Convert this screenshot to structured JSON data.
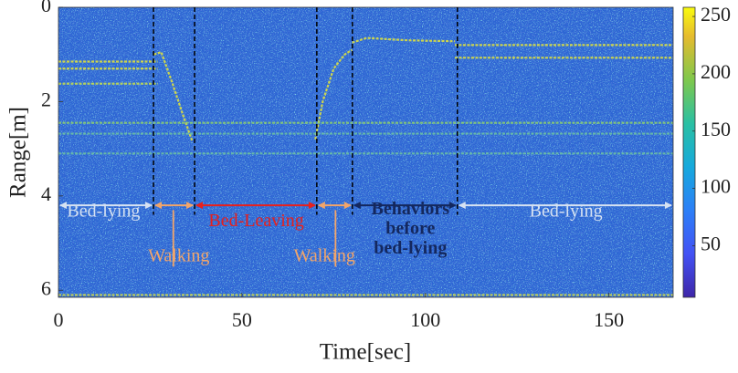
{
  "chart_data": {
    "type": "heatmap",
    "x_label": "Time[sec]",
    "y_label": "Range[m]",
    "xlim": [
      0,
      167.5
    ],
    "ylim": [
      0,
      6.15
    ],
    "y_reversed": true,
    "xticks": [
      0,
      50,
      100,
      150
    ],
    "yticks": [
      0,
      2,
      4,
      6
    ],
    "clim": [
      5,
      258
    ],
    "cticks": [
      50,
      100,
      150,
      200,
      250
    ],
    "background_color": "#2d66d4",
    "traces": [
      {
        "color": "#e6e636",
        "x": [
          0,
          27
        ],
        "y": [
          1.15,
          1.15
        ]
      },
      {
        "color": "#e6e636",
        "x": [
          0,
          27
        ],
        "y": [
          1.3,
          1.3
        ]
      },
      {
        "color": "#c8e24a",
        "x": [
          0,
          27
        ],
        "y": [
          1.62,
          1.62
        ]
      },
      {
        "color": "#e6e636",
        "x": [
          26,
          28,
          31,
          34,
          36.5
        ],
        "y": [
          1.0,
          0.95,
          1.6,
          2.3,
          2.85
        ]
      },
      {
        "color": "#e6e636",
        "x": [
          70,
          72,
          75,
          78,
          80
        ],
        "y": [
          2.8,
          2.0,
          1.3,
          1.0,
          0.9
        ]
      },
      {
        "color": "#e6e636",
        "x": [
          80,
          84,
          95,
          108
        ],
        "y": [
          0.75,
          0.65,
          0.7,
          0.72
        ]
      },
      {
        "color": "#e6e636",
        "x": [
          108,
          167.5
        ],
        "y": [
          0.8,
          0.8
        ]
      },
      {
        "color": "#e6e636",
        "x": [
          108,
          167.5
        ],
        "y": [
          1.07,
          1.07
        ]
      },
      {
        "color": "#8fd36a",
        "x": [
          0,
          167.5
        ],
        "y": [
          2.45,
          2.45
        ]
      },
      {
        "color": "#6fc4a0",
        "x": [
          0,
          167.5
        ],
        "y": [
          2.68,
          2.68
        ]
      },
      {
        "color": "#6fc4a0",
        "x": [
          0,
          167.5
        ],
        "y": [
          3.1,
          3.1
        ]
      },
      {
        "color": "#d8e040",
        "x": [
          0,
          167.5
        ],
        "y": [
          6.1,
          6.1
        ]
      }
    ],
    "event_lines": [
      25.9,
      37.1,
      70.4,
      80.1,
      108.7
    ],
    "event_line_ymax": 4.4,
    "spans": [
      {
        "x": [
          0,
          25.9
        ],
        "y": 4.2,
        "color": "#d6e2f2"
      },
      {
        "x": [
          25.9,
          37.1
        ],
        "y": 4.2,
        "color": "#f2a56a"
      },
      {
        "x": [
          37.1,
          70.4
        ],
        "y": 4.2,
        "color": "#e8201c"
      },
      {
        "x": [
          70.4,
          80.1
        ],
        "y": 4.2,
        "color": "#f2a56a"
      },
      {
        "x": [
          80.1,
          108.7
        ],
        "y": 4.2,
        "color": "#14285e"
      },
      {
        "x": [
          108.7,
          167.5
        ],
        "y": 4.2,
        "color": "#d6e2f2"
      }
    ],
    "leaders": [
      {
        "x": 31.3,
        "y": [
          4.3,
          5.5
        ],
        "color": "#f2a56a"
      },
      {
        "x": 75.5,
        "y": [
          4.3,
          5.5
        ],
        "color": "#f2a56a"
      }
    ],
    "annotations": [
      {
        "text": "Bed-lying",
        "x": 12.3,
        "y": 4.35,
        "color": "#d6e2f2",
        "bold": false
      },
      {
        "text": "Walking",
        "x": 32.8,
        "y": 5.3,
        "color": "#f2a56a",
        "bold": false
      },
      {
        "text": "Bed-Leaving",
        "x": 53.9,
        "y": 4.55,
        "color": "#e8201c",
        "bold": false
      },
      {
        "text": "Walking",
        "x": 72.5,
        "y": 5.3,
        "color": "#f2a56a",
        "bold": false
      },
      {
        "text": "Behaviors",
        "x": 95.9,
        "y": 4.3,
        "color": "#14285e",
        "bold": true
      },
      {
        "text": "before",
        "x": 95.9,
        "y": 4.72,
        "color": "#14285e",
        "bold": true
      },
      {
        "text": "bed-lying",
        "x": 95.9,
        "y": 5.13,
        "color": "#14285e",
        "bold": true
      },
      {
        "text": "Bed-lying",
        "x": 138.3,
        "y": 4.35,
        "color": "#d6e2f2",
        "bold": false
      }
    ]
  }
}
